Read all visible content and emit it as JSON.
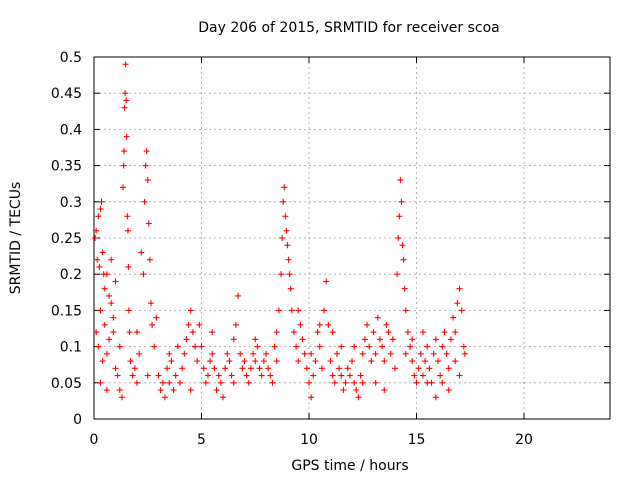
{
  "chart_data": {
    "type": "scatter",
    "title": "Day 206 of 2015, SRMTID for receiver scoa",
    "xlabel": "GPS time / hours",
    "ylabel": "SRMTID / TECUs",
    "xlim": [
      0,
      24
    ],
    "ylim": [
      0,
      0.5
    ],
    "x_ticks": [
      "0",
      "5",
      "10",
      "15",
      "20"
    ],
    "x_tick_values": [
      0,
      5,
      10,
      15,
      20
    ],
    "y_ticks": [
      "0",
      "0.05",
      "0.1",
      "0.15",
      "0.2",
      "0.25",
      "0.3",
      "0.35",
      "0.4",
      "0.45",
      "0.5"
    ],
    "y_tick_values": [
      0,
      0.05,
      0.1,
      0.15,
      0.2,
      0.25,
      0.3,
      0.35,
      0.4,
      0.45,
      0.5
    ],
    "grid": true,
    "marker": "+",
    "color": "#ff0000",
    "series": [
      {
        "name": "SRMTID",
        "points": [
          [
            0.05,
            0.25
          ],
          [
            0.1,
            0.26
          ],
          [
            0.15,
            0.22
          ],
          [
            0.2,
            0.28
          ],
          [
            0.25,
            0.21
          ],
          [
            0.3,
            0.29
          ],
          [
            0.35,
            0.3
          ],
          [
            0.4,
            0.23
          ],
          [
            0.45,
            0.2
          ],
          [
            0.5,
            0.18
          ],
          [
            0.1,
            0.12
          ],
          [
            0.2,
            0.1
          ],
          [
            0.3,
            0.15
          ],
          [
            0.4,
            0.08
          ],
          [
            0.5,
            0.13
          ],
          [
            0.6,
            0.09
          ],
          [
            0.7,
            0.11
          ],
          [
            0.8,
            0.16
          ],
          [
            0.9,
            0.14
          ],
          [
            1.0,
            0.07
          ],
          [
            0.6,
            0.2
          ],
          [
            0.7,
            0.17
          ],
          [
            0.8,
            0.22
          ],
          [
            0.9,
            0.12
          ],
          [
            1.0,
            0.19
          ],
          [
            1.1,
            0.06
          ],
          [
            1.2,
            0.04
          ],
          [
            1.3,
            0.03
          ],
          [
            1.35,
            0.32
          ],
          [
            1.38,
            0.35
          ],
          [
            1.4,
            0.37
          ],
          [
            1.42,
            0.43
          ],
          [
            1.45,
            0.45
          ],
          [
            1.47,
            0.49
          ],
          [
            1.5,
            0.44
          ],
          [
            1.52,
            0.39
          ],
          [
            1.55,
            0.28
          ],
          [
            1.58,
            0.26
          ],
          [
            1.6,
            0.21
          ],
          [
            1.62,
            0.15
          ],
          [
            1.65,
            0.12
          ],
          [
            1.7,
            0.08
          ],
          [
            1.8,
            0.06
          ],
          [
            1.9,
            0.07
          ],
          [
            2.0,
            0.05
          ],
          [
            2.1,
            0.09
          ],
          [
            2.2,
            0.23
          ],
          [
            2.3,
            0.2
          ],
          [
            2.35,
            0.3
          ],
          [
            2.4,
            0.35
          ],
          [
            2.45,
            0.37
          ],
          [
            2.5,
            0.33
          ],
          [
            2.55,
            0.27
          ],
          [
            2.6,
            0.22
          ],
          [
            2.65,
            0.16
          ],
          [
            2.7,
            0.13
          ],
          [
            2.8,
            0.1
          ],
          [
            2.9,
            0.14
          ],
          [
            3.0,
            0.06
          ],
          [
            3.1,
            0.04
          ],
          [
            3.2,
            0.05
          ],
          [
            3.3,
            0.03
          ],
          [
            3.4,
            0.07
          ],
          [
            3.5,
            0.05
          ],
          [
            3.6,
            0.08
          ],
          [
            3.7,
            0.04
          ],
          [
            3.8,
            0.06
          ],
          [
            3.9,
            0.1
          ],
          [
            4.0,
            0.05
          ],
          [
            4.1,
            0.07
          ],
          [
            4.2,
            0.09
          ],
          [
            4.3,
            0.11
          ],
          [
            4.4,
            0.13
          ],
          [
            4.5,
            0.15
          ],
          [
            4.6,
            0.12
          ],
          [
            4.7,
            0.1
          ],
          [
            4.8,
            0.08
          ],
          [
            4.9,
            0.13
          ],
          [
            5.0,
            0.1
          ],
          [
            5.1,
            0.07
          ],
          [
            5.2,
            0.05
          ],
          [
            5.3,
            0.06
          ],
          [
            5.4,
            0.08
          ],
          [
            5.5,
            0.09
          ],
          [
            5.6,
            0.07
          ],
          [
            5.7,
            0.04
          ],
          [
            5.8,
            0.06
          ],
          [
            5.9,
            0.05
          ],
          [
            6.0,
            0.03
          ],
          [
            6.1,
            0.07
          ],
          [
            6.2,
            0.09
          ],
          [
            6.3,
            0.08
          ],
          [
            6.4,
            0.06
          ],
          [
            6.5,
            0.11
          ],
          [
            6.6,
            0.13
          ],
          [
            6.7,
            0.17
          ],
          [
            6.8,
            0.09
          ],
          [
            6.9,
            0.07
          ],
          [
            7.0,
            0.08
          ],
          [
            7.1,
            0.06
          ],
          [
            7.2,
            0.05
          ],
          [
            7.3,
            0.07
          ],
          [
            7.4,
            0.09
          ],
          [
            7.5,
            0.08
          ],
          [
            7.6,
            0.1
          ],
          [
            7.7,
            0.07
          ],
          [
            7.8,
            0.06
          ],
          [
            7.9,
            0.08
          ],
          [
            8.0,
            0.09
          ],
          [
            8.1,
            0.07
          ],
          [
            8.2,
            0.06
          ],
          [
            8.3,
            0.05
          ],
          [
            8.4,
            0.1
          ],
          [
            8.5,
            0.12
          ],
          [
            8.6,
            0.15
          ],
          [
            8.7,
            0.2
          ],
          [
            8.75,
            0.25
          ],
          [
            8.8,
            0.3
          ],
          [
            8.85,
            0.32
          ],
          [
            8.9,
            0.28
          ],
          [
            8.95,
            0.26
          ],
          [
            9.0,
            0.24
          ],
          [
            9.05,
            0.22
          ],
          [
            9.1,
            0.2
          ],
          [
            9.15,
            0.18
          ],
          [
            9.2,
            0.15
          ],
          [
            9.3,
            0.12
          ],
          [
            9.4,
            0.1
          ],
          [
            9.5,
            0.08
          ],
          [
            9.6,
            0.13
          ],
          [
            9.7,
            0.11
          ],
          [
            9.8,
            0.09
          ],
          [
            9.9,
            0.07
          ],
          [
            10.0,
            0.05
          ],
          [
            10.1,
            0.03
          ],
          [
            10.2,
            0.06
          ],
          [
            10.3,
            0.08
          ],
          [
            10.4,
            0.12
          ],
          [
            10.5,
            0.1
          ],
          [
            10.6,
            0.07
          ],
          [
            10.7,
            0.15
          ],
          [
            10.8,
            0.19
          ],
          [
            10.9,
            0.13
          ],
          [
            11.0,
            0.08
          ],
          [
            11.1,
            0.06
          ],
          [
            11.2,
            0.05
          ],
          [
            11.3,
            0.09
          ],
          [
            11.4,
            0.07
          ],
          [
            11.5,
            0.06
          ],
          [
            11.6,
            0.04
          ],
          [
            11.7,
            0.05
          ],
          [
            11.8,
            0.07
          ],
          [
            11.9,
            0.06
          ],
          [
            12.0,
            0.08
          ],
          [
            12.1,
            0.05
          ],
          [
            12.2,
            0.04
          ],
          [
            12.3,
            0.03
          ],
          [
            12.4,
            0.06
          ],
          [
            12.5,
            0.09
          ],
          [
            12.6,
            0.11
          ],
          [
            12.7,
            0.13
          ],
          [
            12.8,
            0.1
          ],
          [
            12.9,
            0.08
          ],
          [
            13.0,
            0.12
          ],
          [
            13.1,
            0.09
          ],
          [
            13.2,
            0.14
          ],
          [
            13.3,
            0.11
          ],
          [
            13.4,
            0.1
          ],
          [
            13.5,
            0.08
          ],
          [
            13.6,
            0.13
          ],
          [
            13.7,
            0.12
          ],
          [
            13.8,
            0.09
          ],
          [
            13.9,
            0.11
          ],
          [
            14.0,
            0.07
          ],
          [
            14.1,
            0.2
          ],
          [
            14.15,
            0.25
          ],
          [
            14.2,
            0.28
          ],
          [
            14.25,
            0.33
          ],
          [
            14.3,
            0.3
          ],
          [
            14.35,
            0.24
          ],
          [
            14.4,
            0.22
          ],
          [
            14.45,
            0.18
          ],
          [
            14.5,
            0.15
          ],
          [
            14.6,
            0.12
          ],
          [
            14.7,
            0.1
          ],
          [
            14.8,
            0.08
          ],
          [
            14.9,
            0.06
          ],
          [
            15.0,
            0.05
          ],
          [
            15.1,
            0.07
          ],
          [
            15.2,
            0.09
          ],
          [
            15.3,
            0.06
          ],
          [
            15.4,
            0.08
          ],
          [
            15.5,
            0.1
          ],
          [
            15.6,
            0.07
          ],
          [
            15.7,
            0.05
          ],
          [
            15.8,
            0.09
          ],
          [
            15.9,
            0.11
          ],
          [
            16.0,
            0.08
          ],
          [
            16.1,
            0.06
          ],
          [
            16.2,
            0.1
          ],
          [
            16.3,
            0.12
          ],
          [
            16.4,
            0.09
          ],
          [
            16.5,
            0.07
          ],
          [
            16.6,
            0.11
          ],
          [
            16.7,
            0.14
          ],
          [
            16.8,
            0.12
          ],
          [
            16.9,
            0.16
          ],
          [
            17.0,
            0.18
          ],
          [
            17.1,
            0.15
          ],
          [
            17.2,
            0.1
          ],
          [
            17.25,
            0.09
          ],
          [
            0.3,
            0.05
          ],
          [
            0.6,
            0.04
          ],
          [
            1.2,
            0.1
          ],
          [
            2.0,
            0.12
          ],
          [
            2.5,
            0.06
          ],
          [
            3.5,
            0.09
          ],
          [
            4.5,
            0.04
          ],
          [
            5.5,
            0.12
          ],
          [
            6.5,
            0.05
          ],
          [
            7.5,
            0.11
          ],
          [
            8.5,
            0.08
          ],
          [
            9.5,
            0.15
          ],
          [
            10.5,
            0.13
          ],
          [
            11.5,
            0.1
          ],
          [
            12.5,
            0.05
          ],
          [
            13.5,
            0.04
          ],
          [
            14.5,
            0.09
          ],
          [
            15.5,
            0.05
          ],
          [
            16.5,
            0.04
          ],
          [
            17.0,
            0.06
          ],
          [
            16.8,
            0.08
          ],
          [
            16.2,
            0.05
          ],
          [
            15.9,
            0.03
          ],
          [
            15.3,
            0.12
          ],
          [
            14.8,
            0.11
          ],
          [
            13.1,
            0.05
          ],
          [
            12.1,
            0.1
          ],
          [
            11.1,
            0.12
          ],
          [
            10.1,
            0.09
          ]
        ]
      }
    ]
  }
}
